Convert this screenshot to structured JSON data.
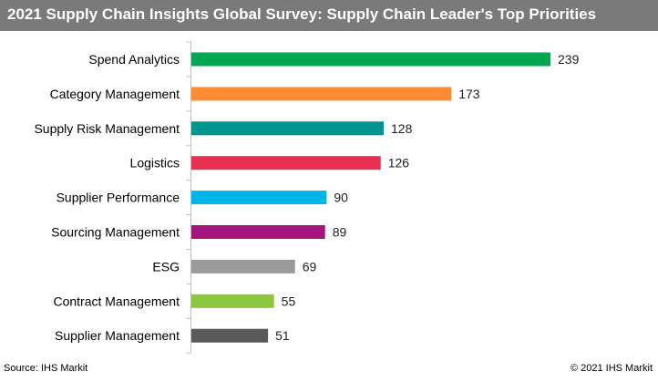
{
  "title": "2021 Supply Chain Insights Global Survey: Supply Chain Leader's Top Priorities",
  "source": "Source: IHS Markit",
  "copyright": "© 2021 IHS Markit",
  "chart_data": {
    "type": "bar",
    "orientation": "horizontal",
    "categories": [
      "Spend Analytics",
      "Category Management",
      "Supply Risk Management",
      "Logistics",
      "Supplier Performance",
      "Sourcing Management",
      "ESG",
      "Contract Management",
      "Supplier Management"
    ],
    "values": [
      239,
      173,
      128,
      126,
      90,
      89,
      69,
      55,
      51
    ],
    "colors": [
      "#00a651",
      "#ff8c33",
      "#00968f",
      "#e8314f",
      "#00b6e8",
      "#a3147c",
      "#9a9a9a",
      "#8cc63f",
      "#5a5a5a"
    ],
    "xlim": [
      0,
      250
    ],
    "grid": false,
    "legend": "none",
    "data_labels": true
  }
}
